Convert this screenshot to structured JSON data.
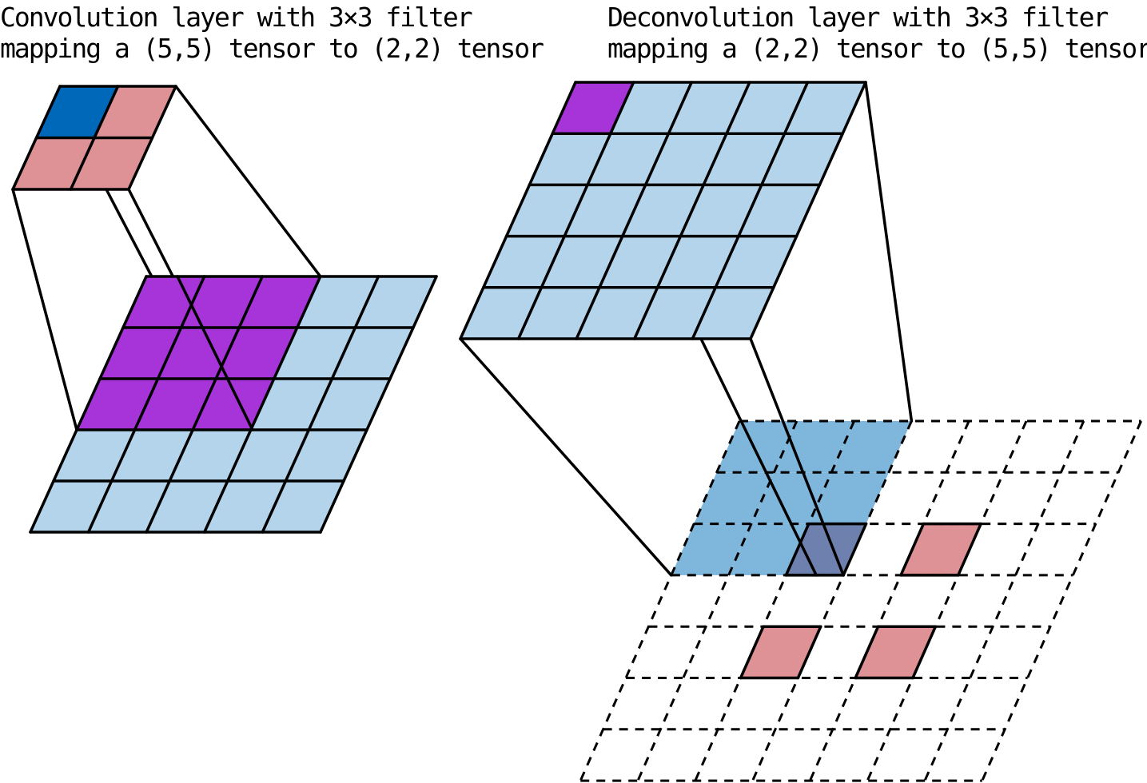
{
  "left_panel": {
    "title_line1": "Convolution layer with 3×3 filter",
    "title_line2": "mapping a (5,5) tensor to (2,2) tensor",
    "input_shape": [
      5,
      5
    ],
    "output_shape": [
      2,
      2
    ],
    "filter_size": 3
  },
  "right_panel": {
    "title_line1": "Deconvolution layer with 3×3 filter",
    "title_line2": "mapping a (2,2) tensor to (5,5) tensor",
    "input_shape": [
      2,
      2
    ],
    "output_shape": [
      5,
      5
    ],
    "filter_size": 3
  },
  "colors": {
    "grid_light_blue": "#b3d4ea",
    "receptive_field_purple": "#a634d8",
    "active_output_blue": "#0068b8",
    "other_output_pink": "#df9296",
    "filter_window_blue": "#7fb6dc",
    "overlap_slate": "#6e80ad",
    "line": "#000000"
  }
}
